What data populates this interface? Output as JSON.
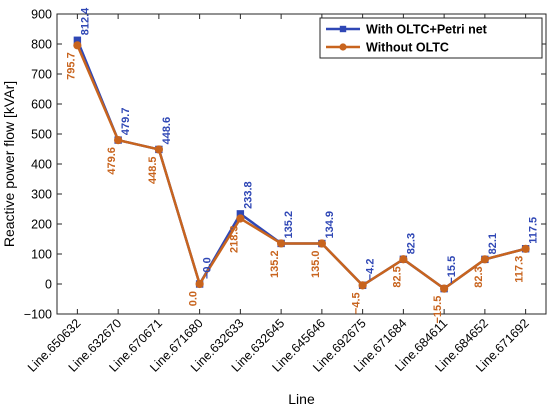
{
  "chart_data": {
    "type": "line",
    "xlabel": "Line",
    "ylabel": "Reactive power flow [kVAr]",
    "ylim": [
      -100,
      900
    ],
    "yticks": [
      -100,
      0,
      100,
      200,
      300,
      400,
      500,
      600,
      700,
      800,
      900
    ],
    "ytick_labels": [
      "-100",
      "0",
      "100",
      "200",
      "300",
      "400",
      "500",
      "600",
      "700",
      "800",
      "900"
    ],
    "grid": false,
    "legend_position": "top-right",
    "categories": [
      "Line.650632",
      "Line.632670",
      "Line.670671",
      "Line.671680",
      "Line.632633",
      "Line.632645",
      "Line.645646",
      "Line.692675",
      "Line.671684",
      "Line.684611",
      "Line.684652",
      "Line.671692"
    ],
    "series": [
      {
        "name": "With OLTC+Petri net",
        "color": "#2f47b5",
        "marker": "square",
        "values": [
          812.4,
          479.7,
          448.6,
          -0.0,
          233.8,
          135.2,
          134.9,
          -4.2,
          82.3,
          -15.5,
          82.1,
          117.5
        ],
        "labels": [
          "812.4",
          "479.7",
          "448.6",
          "-0.0",
          "233.8",
          "135.2",
          "134.9",
          "-4.2",
          "82.3",
          "-15.5",
          "82.1",
          "117.5"
        ]
      },
      {
        "name": "Without OLTC",
        "color": "#c8641e",
        "marker": "circle",
        "values": [
          795.7,
          479.6,
          448.5,
          0.0,
          218.3,
          135.2,
          135.0,
          -4.5,
          82.5,
          -15.5,
          82.3,
          117.3
        ],
        "labels": [
          "795.7",
          "479.6",
          "448.5",
          "0.0",
          "218.3",
          "135.2",
          "135.0",
          "-4.5",
          "82.5",
          "-15.5",
          "82.3",
          "117.3"
        ]
      }
    ]
  }
}
